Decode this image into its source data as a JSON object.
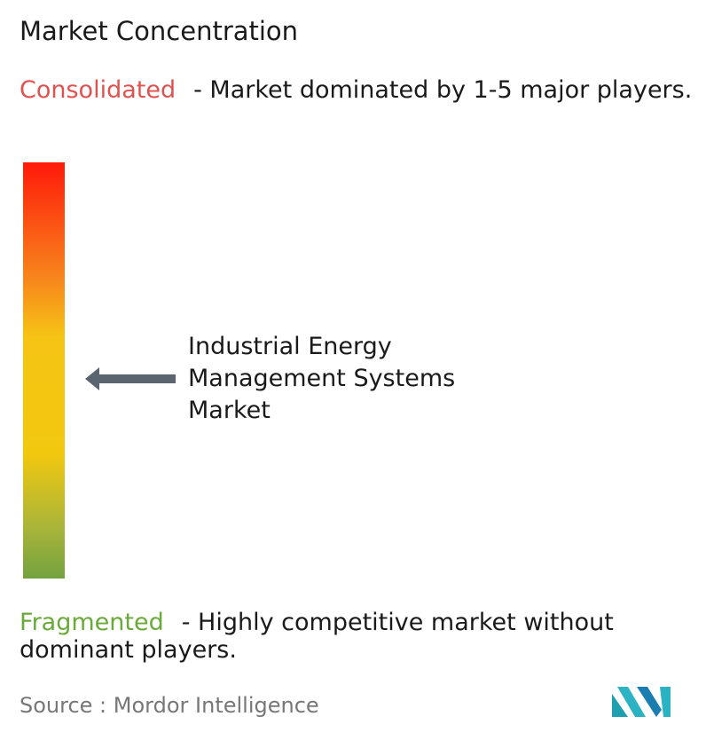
{
  "title": "Market Concentration",
  "consolidated": {
    "label": "Consolidated",
    "description": "- Market dominated by 1-5 major players."
  },
  "market": {
    "lines": [
      "Industrial Energy",
      "Management Systems",
      "Market"
    ]
  },
  "fragmented": {
    "label": "Fragmented",
    "description": "- Highly competitive market without dominant players."
  },
  "source": "Source :  Mordor Intelligence"
}
